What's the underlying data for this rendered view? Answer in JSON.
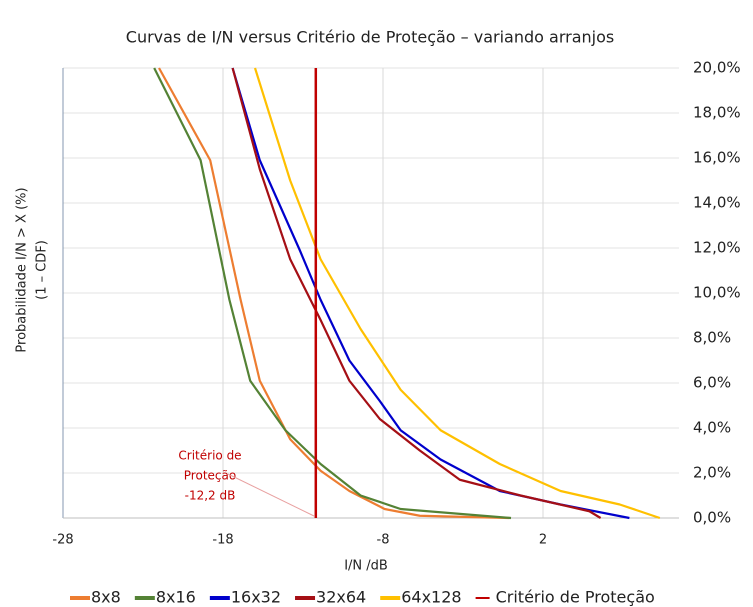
{
  "chart_data": {
    "type": "line",
    "title": "Curvas de I/N versus Critério de Proteção – variando arranjos",
    "x_label": "I/N  /dB",
    "y_label": [
      "Probabilidade I/N > X (%)",
      "(1 – CDF)"
    ],
    "xlim": [
      -28,
      10.5
    ],
    "xticks": [
      -28,
      -18,
      -8,
      2
    ],
    "ylim": [
      0,
      20
    ],
    "yticks": [
      {
        "value": 0,
        "label": "0,0%"
      },
      {
        "value": 2,
        "label": "2,0%"
      },
      {
        "value": 4,
        "label": "4,0%"
      },
      {
        "value": 6,
        "label": "6,0%"
      },
      {
        "value": 8,
        "label": "8,0%"
      },
      {
        "value": 10,
        "label": "10,0%"
      },
      {
        "value": 12,
        "label": "12,0%"
      },
      {
        "value": 14,
        "label": "14,0%"
      },
      {
        "value": 16,
        "label": "16,0%"
      },
      {
        "value": 18,
        "label": "18,0%"
      },
      {
        "value": 20,
        "label": "20,0%"
      }
    ],
    "grid": true,
    "legend": "bottom",
    "annotation": [
      "Critério de",
      "Proteção",
      "-12,2 dB"
    ],
    "series": [
      {
        "name": "8x8",
        "color": "#ed7d31",
        "x": [
          -22.0,
          -18.8,
          -16.9,
          -15.7,
          -13.8,
          -11.9,
          -10.1,
          -7.9,
          -5.7,
          -0.1
        ],
        "values": [
          20,
          15.9,
          9.7,
          6.1,
          3.5,
          2.1,
          1.2,
          0.4,
          0.1,
          0
        ]
      },
      {
        "name": "8x16",
        "color": "#548235",
        "x": [
          -22.3,
          -19.4,
          -17.6,
          -16.3,
          -14.1,
          -11.9,
          -9.4,
          -6.9,
          0
        ],
        "values": [
          20,
          15.9,
          9.7,
          6.1,
          3.9,
          2.4,
          1.0,
          0.4,
          0
        ]
      },
      {
        "name": "16x32",
        "color": "#0000cc",
        "x": [
          -17.4,
          -15.7,
          -13.2,
          -11.9,
          -10.1,
          -8.2,
          -6.9,
          -4.4,
          -0.7,
          3.1,
          7.4
        ],
        "values": [
          20,
          15.9,
          11.9,
          9.7,
          7.0,
          5.2,
          3.9,
          2.6,
          1.2,
          0.6,
          0
        ]
      },
      {
        "name": "32x64",
        "color": "#a50f15",
        "x": [
          -17.4,
          -15.7,
          -13.8,
          -11.9,
          -10.1,
          -8.2,
          -5.7,
          -3.2,
          0.6,
          4.9,
          5.6
        ],
        "values": [
          20,
          15.5,
          11.5,
          8.8,
          6.1,
          4.4,
          3.0,
          1.7,
          1.0,
          0.3,
          0
        ]
      },
      {
        "name": "64x128",
        "color": "#ffc000",
        "x": [
          -16.0,
          -13.8,
          -11.9,
          -9.4,
          -6.9,
          -4.4,
          -0.7,
          3.1,
          6.8,
          9.3
        ],
        "values": [
          20,
          15.0,
          11.5,
          8.4,
          5.7,
          3.9,
          2.4,
          1.2,
          0.6,
          0
        ]
      },
      {
        "name": "Critério de Proteção",
        "color": "#c00000",
        "x": [
          -12.2,
          -12.2
        ],
        "values": [
          0,
          20
        ]
      }
    ]
  }
}
